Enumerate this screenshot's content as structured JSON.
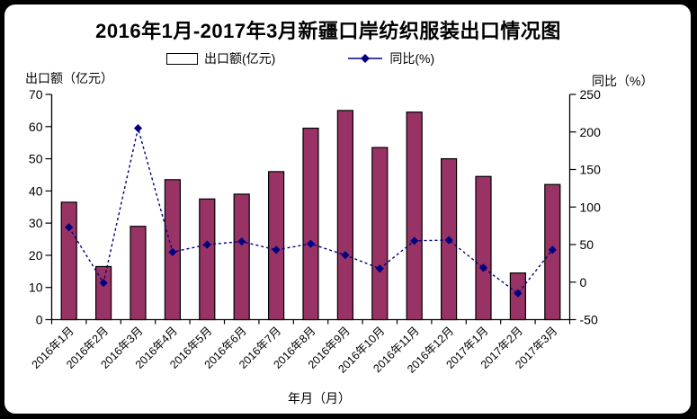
{
  "title": "2016年1月-2017年3月新疆口岸纺织服装出口情况图",
  "legend": {
    "bar_label": "出口额(亿元)",
    "line_label": "同比(%)"
  },
  "axes": {
    "left_title": "出口额（亿元）",
    "right_title": "同比（%）",
    "x_title": "年月（月）"
  },
  "colors": {
    "bar_fill": "#993366",
    "bar_stroke": "#000000",
    "line": "#000080",
    "frame": "#000000",
    "card": "#ffffff"
  },
  "chart_data": {
    "type": "bar",
    "subtype": "bar+line combo, dual axis",
    "title": "2016年1月-2017年3月新疆口岸纺织服装出口情况图",
    "grid": false,
    "legend_position": "top",
    "categories": [
      "2016年1月",
      "2016年2月",
      "2016年3月",
      "2016年4月",
      "2016年5月",
      "2016年6月",
      "2016年7月",
      "2016年8月",
      "2016年9月",
      "2016年10月",
      "2016年11月",
      "2016年12月",
      "2017年1月",
      "2017年2月",
      "2017年3月"
    ],
    "series": [
      {
        "name": "出口额(亿元)",
        "type": "bar",
        "axis": "left",
        "color": "#993366",
        "values": [
          36.5,
          16.5,
          29,
          43.5,
          37.5,
          39,
          46,
          59.5,
          65,
          53.5,
          64.5,
          50,
          44.5,
          14.5,
          42
        ]
      },
      {
        "name": "同比(%)",
        "type": "line",
        "axis": "right",
        "color": "#000080",
        "values": [
          73,
          -1,
          205,
          40,
          50,
          54,
          43,
          51,
          36,
          18,
          55,
          56,
          19,
          -15,
          43
        ]
      }
    ],
    "left_axis": {
      "label": "出口额（亿元）",
      "min": 0,
      "max": 70,
      "step": 10,
      "ticks": [
        "0",
        "10",
        "20",
        "30",
        "40",
        "50",
        "60",
        "70"
      ]
    },
    "right_axis": {
      "label": "同比（%）",
      "min": -50,
      "max": 250,
      "step": 50,
      "ticks": [
        "-50",
        "0",
        "50",
        "100",
        "150",
        "200",
        "250"
      ]
    },
    "x_axis": {
      "label": "年月（月）",
      "tick_rotation": -45
    }
  }
}
